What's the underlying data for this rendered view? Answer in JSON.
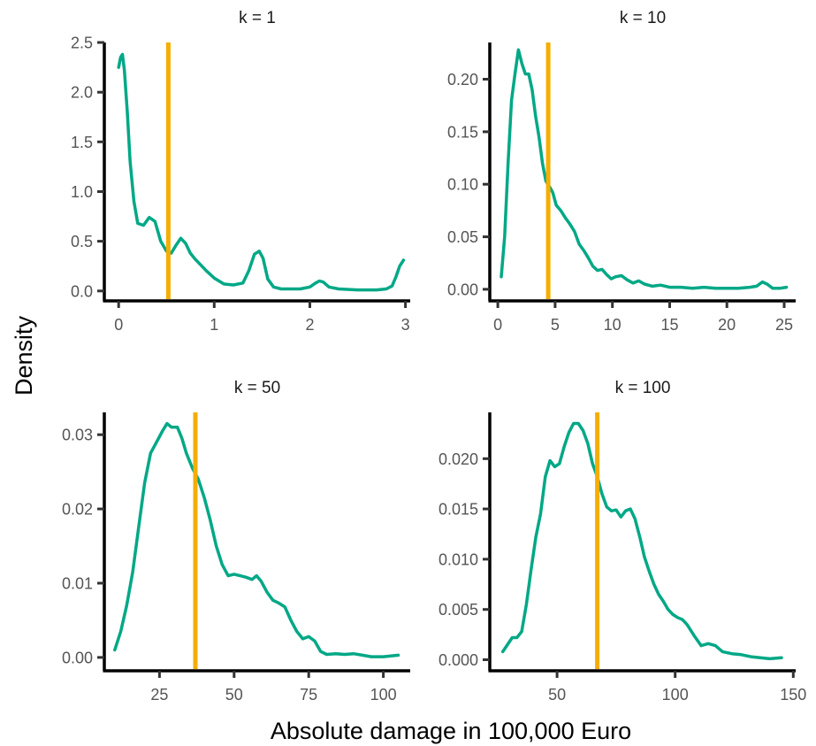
{
  "figure": {
    "xlabel": "Absolute damage in 100,000 Euro",
    "ylabel": "Density",
    "colors": {
      "density": "#00a886",
      "vline": "#f5ad00",
      "axis": "#000000"
    }
  },
  "chart_data": [
    {
      "type": "line",
      "title": "k = 1",
      "xlim": [
        -0.15,
        3.05
      ],
      "ylim": [
        -0.1,
        2.5
      ],
      "xticks": [
        0,
        1,
        2,
        3
      ],
      "xtick_labels": [
        "0",
        "1",
        "2",
        "3"
      ],
      "yticks": [
        0,
        0.5,
        1.0,
        1.5,
        2.0,
        2.5
      ],
      "ytick_labels": [
        "0.0",
        "0.5",
        "1.0",
        "1.5",
        "2.0",
        "2.5"
      ],
      "vline": 0.52,
      "series": [
        {
          "x": [
            0.0,
            0.02,
            0.04,
            0.06,
            0.09,
            0.12,
            0.16,
            0.2,
            0.26,
            0.32,
            0.38,
            0.44,
            0.5,
            0.55,
            0.6,
            0.65,
            0.7,
            0.75,
            0.8,
            0.86,
            0.92,
            1.0,
            1.1,
            1.2,
            1.3,
            1.36,
            1.42,
            1.47,
            1.51,
            1.56,
            1.62,
            1.7,
            1.8,
            1.9,
            2.0,
            2.06,
            2.1,
            2.14,
            2.2,
            2.3,
            2.5,
            2.7,
            2.8,
            2.86,
            2.9,
            2.94,
            2.98
          ],
          "y": [
            2.25,
            2.35,
            2.38,
            2.22,
            1.8,
            1.3,
            0.9,
            0.68,
            0.66,
            0.74,
            0.7,
            0.5,
            0.4,
            0.38,
            0.46,
            0.53,
            0.48,
            0.38,
            0.32,
            0.26,
            0.2,
            0.13,
            0.07,
            0.06,
            0.08,
            0.2,
            0.37,
            0.4,
            0.33,
            0.12,
            0.04,
            0.02,
            0.02,
            0.02,
            0.04,
            0.08,
            0.1,
            0.09,
            0.04,
            0.02,
            0.01,
            0.01,
            0.02,
            0.05,
            0.14,
            0.25,
            0.31
          ]
        }
      ]
    },
    {
      "type": "line",
      "title": "k = 10",
      "xlim": [
        -0.7,
        26.0
      ],
      "ylim": [
        -0.011,
        0.235
      ],
      "xticks": [
        0,
        5,
        10,
        15,
        20,
        25
      ],
      "xtick_labels": [
        "0",
        "5",
        "10",
        "15",
        "20",
        "25"
      ],
      "yticks": [
        0,
        0.05,
        0.1,
        0.15,
        0.2
      ],
      "ytick_labels": [
        "0.00",
        "0.05",
        "0.10",
        "0.15",
        "0.20"
      ],
      "vline": 4.4,
      "series": [
        {
          "x": [
            0.3,
            0.6,
            0.9,
            1.2,
            1.5,
            1.8,
            2.1,
            2.4,
            2.7,
            3.0,
            3.3,
            3.6,
            3.9,
            4.2,
            4.5,
            4.8,
            5.1,
            5.5,
            5.9,
            6.3,
            6.7,
            7.1,
            7.5,
            7.9,
            8.3,
            8.7,
            9.1,
            9.5,
            9.9,
            10.3,
            10.8,
            11.3,
            11.8,
            12.3,
            12.8,
            13.5,
            14.2,
            15.0,
            16.0,
            17.0,
            18.0,
            19.0,
            20.0,
            21.0,
            22.0,
            22.6,
            23.1,
            23.5,
            24.0,
            24.6,
            25.2
          ],
          "y": [
            0.012,
            0.05,
            0.12,
            0.18,
            0.205,
            0.228,
            0.215,
            0.205,
            0.205,
            0.19,
            0.165,
            0.145,
            0.12,
            0.103,
            0.098,
            0.092,
            0.08,
            0.075,
            0.068,
            0.062,
            0.055,
            0.043,
            0.037,
            0.03,
            0.022,
            0.018,
            0.019,
            0.014,
            0.01,
            0.012,
            0.013,
            0.009,
            0.006,
            0.008,
            0.005,
            0.003,
            0.004,
            0.002,
            0.002,
            0.001,
            0.002,
            0.001,
            0.001,
            0.001,
            0.002,
            0.003,
            0.007,
            0.005,
            0.001,
            0.001,
            0.002
          ]
        }
      ]
    },
    {
      "type": "line",
      "title": "k = 50",
      "xlim": [
        6.5,
        109.0
      ],
      "ylim": [
        -0.0018,
        0.033
      ],
      "xticks": [
        25,
        50,
        75,
        100
      ],
      "xtick_labels": [
        "25",
        "50",
        "75",
        "100"
      ],
      "yticks": [
        0,
        0.01,
        0.02,
        0.03
      ],
      "ytick_labels": [
        "0.00",
        "0.01",
        "0.02",
        "0.03"
      ],
      "vline": 37,
      "series": [
        {
          "x": [
            10,
            12,
            14,
            16,
            18,
            20,
            22,
            24,
            26,
            27.5,
            29,
            31,
            32.5,
            34,
            36,
            38,
            40,
            42,
            44,
            46,
            48,
            50,
            52,
            54,
            56,
            57.5,
            59,
            61,
            63,
            65,
            67,
            69,
            71,
            73,
            75,
            77,
            79,
            81,
            84,
            87,
            90,
            93,
            96,
            100,
            105
          ],
          "y": [
            0.001,
            0.0035,
            0.007,
            0.0115,
            0.0175,
            0.0235,
            0.0275,
            0.029,
            0.0305,
            0.0315,
            0.031,
            0.031,
            0.0295,
            0.0275,
            0.0255,
            0.024,
            0.0215,
            0.0185,
            0.015,
            0.0125,
            0.011,
            0.0112,
            0.011,
            0.0108,
            0.0105,
            0.011,
            0.0103,
            0.0088,
            0.0077,
            0.0073,
            0.0068,
            0.005,
            0.0035,
            0.0025,
            0.0028,
            0.0022,
            0.0008,
            0.0004,
            0.0005,
            0.0004,
            0.0005,
            0.0003,
            0.0001,
            0.0001,
            0.0003
          ]
        }
      ]
    },
    {
      "type": "line",
      "title": "k = 100",
      "xlim": [
        21.5,
        151.0
      ],
      "ylim": [
        -0.0011,
        0.0246
      ],
      "xticks": [
        50,
        100,
        150
      ],
      "xtick_labels": [
        "50",
        "100",
        "150"
      ],
      "yticks": [
        0,
        0.005,
        0.01,
        0.015,
        0.02
      ],
      "ytick_labels": [
        "0.000",
        "0.005",
        "0.010",
        "0.015",
        "0.020"
      ],
      "vline": 67,
      "series": [
        {
          "x": [
            27,
            29,
            31,
            33,
            35,
            37,
            39,
            41,
            43,
            45,
            47,
            49,
            51,
            53,
            55,
            57,
            59,
            61,
            63,
            65,
            67,
            69,
            71,
            73,
            75,
            77,
            79,
            81,
            83,
            85,
            87,
            89,
            91,
            93,
            95,
            97,
            99,
            101,
            103,
            105,
            108,
            111,
            114,
            117,
            120,
            124,
            128,
            132,
            136,
            140,
            145
          ],
          "y": [
            0.0008,
            0.0015,
            0.0022,
            0.0022,
            0.0028,
            0.0055,
            0.009,
            0.0122,
            0.0145,
            0.0182,
            0.0198,
            0.0192,
            0.0195,
            0.0212,
            0.0226,
            0.0235,
            0.0235,
            0.0228,
            0.0215,
            0.0195,
            0.0182,
            0.0165,
            0.0152,
            0.0148,
            0.0149,
            0.0142,
            0.0148,
            0.015,
            0.014,
            0.0122,
            0.0102,
            0.0088,
            0.0075,
            0.0065,
            0.0058,
            0.005,
            0.0045,
            0.0042,
            0.004,
            0.0035,
            0.0024,
            0.0014,
            0.0016,
            0.0014,
            0.0008,
            0.0006,
            0.0005,
            0.0003,
            0.0002,
            0.0001,
            0.0002
          ]
        }
      ]
    }
  ]
}
